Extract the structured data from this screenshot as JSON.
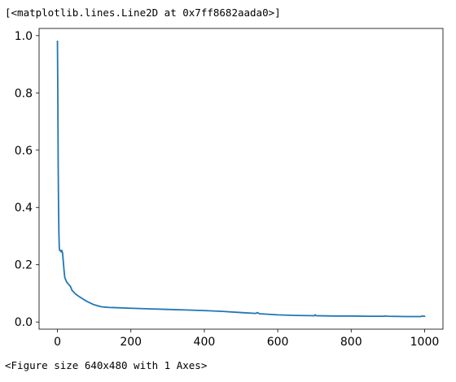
{
  "output": {
    "repr_line": "[<matplotlib.lines.Line2D at 0x7ff8682aada0>]",
    "figure_line": "<Figure size 640x480 with 1 Axes>"
  },
  "chart_data": {
    "type": "line",
    "title": "",
    "xlabel": "",
    "ylabel": "",
    "xlim": [
      -50,
      1050
    ],
    "ylim": [
      -0.025,
      1.025
    ],
    "xticks": [
      0,
      200,
      400,
      600,
      800,
      1000
    ],
    "xtick_labels": [
      "0",
      "200",
      "400",
      "600",
      "800",
      "1000"
    ],
    "yticks": [
      0.0,
      0.2,
      0.4,
      0.6,
      0.8,
      1.0
    ],
    "ytick_labels": [
      "0.0",
      "0.2",
      "0.4",
      "0.6",
      "0.8",
      "1.0"
    ],
    "grid": false,
    "series": [
      {
        "color": "#1f77b4",
        "x": [
          0,
          1,
          2,
          3,
          4,
          5,
          6,
          7,
          8,
          10,
          12,
          14,
          16,
          18,
          20,
          25,
          30,
          35,
          40,
          50,
          60,
          70,
          80,
          100,
          120,
          140,
          160,
          200,
          250,
          300,
          350,
          400,
          450,
          500,
          540,
          545,
          550,
          600,
          650,
          700,
          702,
          705,
          750,
          800,
          850,
          890,
          893,
          900,
          950,
          990,
          993,
          1000
        ],
        "y": [
          0.98,
          0.8,
          0.55,
          0.4,
          0.31,
          0.26,
          0.25,
          0.25,
          0.25,
          0.245,
          0.25,
          0.24,
          0.21,
          0.18,
          0.155,
          0.14,
          0.132,
          0.125,
          0.11,
          0.097,
          0.088,
          0.08,
          0.072,
          0.06,
          0.053,
          0.051,
          0.05,
          0.048,
          0.046,
          0.044,
          0.042,
          0.04,
          0.037,
          0.033,
          0.03,
          0.033,
          0.029,
          0.025,
          0.023,
          0.022,
          0.025,
          0.022,
          0.021,
          0.021,
          0.02,
          0.02,
          0.021,
          0.02,
          0.019,
          0.019,
          0.021,
          0.02
        ]
      }
    ]
  }
}
